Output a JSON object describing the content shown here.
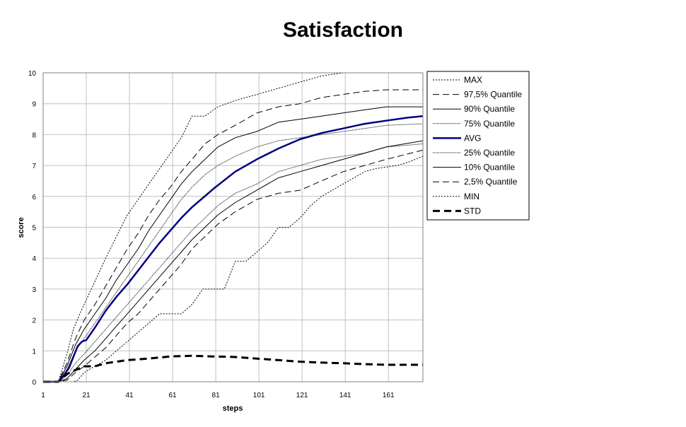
{
  "chart_data": {
    "type": "line",
    "title": "Satisfaction",
    "xlabel": "steps",
    "ylabel": "score",
    "xlim": [
      1,
      177
    ],
    "ylim": [
      0,
      10
    ],
    "xticks": [
      1,
      21,
      41,
      61,
      81,
      101,
      121,
      141,
      161
    ],
    "yticks": [
      0,
      1,
      2,
      3,
      4,
      5,
      6,
      7,
      8,
      9,
      10
    ],
    "grid": true,
    "legend_position": "right",
    "series": [
      {
        "name": "MAX",
        "style": "dotted",
        "color": "#000000",
        "x": [
          1,
          8,
          12,
          15,
          18,
          22,
          26,
          30,
          35,
          40,
          45,
          50,
          55,
          60,
          65,
          70,
          76,
          82,
          90,
          100,
          110,
          120,
          130,
          140,
          145
        ],
        "y": [
          0,
          0,
          0.9,
          1.7,
          2.2,
          2.8,
          3.4,
          4.0,
          4.7,
          5.4,
          5.9,
          6.4,
          6.9,
          7.4,
          7.9,
          8.6,
          8.6,
          8.9,
          9.1,
          9.3,
          9.5,
          9.7,
          9.9,
          10.0,
          10.0
        ]
      },
      {
        "name": "97,5% Quantile",
        "style": "longdash",
        "color": "#000000",
        "x": [
          1,
          8,
          12,
          16,
          20,
          25,
          30,
          35,
          40,
          45,
          50,
          55,
          60,
          65,
          70,
          76,
          82,
          90,
          100,
          110,
          120,
          130,
          140,
          150,
          160,
          177
        ],
        "y": [
          0,
          0,
          0.6,
          1.4,
          2.0,
          2.5,
          3.1,
          3.7,
          4.3,
          4.8,
          5.4,
          5.9,
          6.3,
          6.8,
          7.2,
          7.7,
          8.0,
          8.3,
          8.7,
          8.9,
          9.0,
          9.2,
          9.3,
          9.4,
          9.45,
          9.45
        ]
      },
      {
        "name": "90% Quantile",
        "style": "solid",
        "color": "#000000",
        "x": [
          1,
          8,
          12,
          16,
          20,
          25,
          30,
          35,
          40,
          45,
          50,
          55,
          60,
          65,
          70,
          76,
          82,
          90,
          100,
          110,
          120,
          130,
          140,
          150,
          160,
          177
        ],
        "y": [
          0,
          0,
          0.5,
          1.2,
          1.7,
          2.2,
          2.7,
          3.3,
          3.8,
          4.3,
          4.9,
          5.4,
          5.9,
          6.4,
          6.8,
          7.2,
          7.6,
          7.9,
          8.1,
          8.4,
          8.5,
          8.6,
          8.7,
          8.8,
          8.9,
          8.9
        ]
      },
      {
        "name": "75% Quantile",
        "style": "dense",
        "color": "#000000",
        "x": [
          1,
          8,
          12,
          16,
          20,
          25,
          30,
          35,
          40,
          45,
          50,
          55,
          60,
          65,
          70,
          76,
          82,
          90,
          100,
          110,
          120,
          130,
          140,
          150,
          160,
          177
        ],
        "y": [
          0,
          0,
          0.4,
          1.0,
          1.4,
          1.9,
          2.4,
          2.9,
          3.4,
          3.9,
          4.4,
          4.9,
          5.4,
          5.9,
          6.3,
          6.7,
          7.0,
          7.3,
          7.6,
          7.8,
          7.9,
          8.0,
          8.1,
          8.2,
          8.3,
          8.35
        ]
      },
      {
        "name": "AVG",
        "style": "bold",
        "color": "#000080",
        "x": [
          1,
          8,
          10,
          13,
          15,
          17,
          19,
          21,
          25,
          30,
          35,
          40,
          45,
          50,
          55,
          60,
          65,
          70,
          75,
          80,
          90,
          100,
          110,
          120,
          130,
          140,
          150,
          160,
          170,
          177
        ],
        "y": [
          0,
          0,
          0.15,
          0.45,
          0.8,
          1.15,
          1.3,
          1.35,
          1.75,
          2.3,
          2.75,
          3.15,
          3.6,
          4.05,
          4.5,
          4.9,
          5.3,
          5.65,
          5.95,
          6.25,
          6.8,
          7.2,
          7.55,
          7.85,
          8.05,
          8.2,
          8.35,
          8.45,
          8.55,
          8.6
        ]
      },
      {
        "name": "25% Quantile",
        "style": "dense",
        "color": "#000000",
        "x": [
          1,
          8,
          12,
          16,
          20,
          25,
          30,
          35,
          40,
          45,
          50,
          55,
          60,
          65,
          70,
          76,
          82,
          90,
          100,
          110,
          120,
          130,
          140,
          150,
          160,
          177
        ],
        "y": [
          0,
          0,
          0.2,
          0.6,
          0.9,
          1.3,
          1.7,
          2.1,
          2.5,
          2.9,
          3.3,
          3.7,
          4.1,
          4.5,
          4.9,
          5.3,
          5.7,
          6.1,
          6.4,
          6.8,
          7.0,
          7.2,
          7.3,
          7.4,
          7.6,
          7.7
        ]
      },
      {
        "name": "10% Quantile",
        "style": "solid",
        "color": "#000000",
        "x": [
          1,
          8,
          12,
          16,
          20,
          25,
          30,
          35,
          40,
          45,
          50,
          55,
          60,
          65,
          70,
          76,
          82,
          90,
          100,
          110,
          120,
          130,
          140,
          150,
          160,
          177
        ],
        "y": [
          0,
          0,
          0.1,
          0.4,
          0.7,
          1.0,
          1.4,
          1.8,
          2.2,
          2.6,
          3.0,
          3.4,
          3.8,
          4.2,
          4.6,
          5.0,
          5.4,
          5.8,
          6.2,
          6.6,
          6.8,
          7.0,
          7.2,
          7.4,
          7.6,
          7.8
        ]
      },
      {
        "name": "2,5% Quantile",
        "style": "longdash",
        "color": "#000000",
        "x": [
          1,
          8,
          12,
          16,
          20,
          25,
          30,
          35,
          40,
          45,
          50,
          55,
          60,
          65,
          70,
          76,
          82,
          90,
          100,
          110,
          120,
          130,
          140,
          150,
          160,
          177
        ],
        "y": [
          0,
          0,
          0.05,
          0.3,
          0.5,
          0.8,
          1.1,
          1.5,
          1.9,
          2.2,
          2.6,
          3.0,
          3.4,
          3.8,
          4.3,
          4.7,
          5.1,
          5.5,
          5.9,
          6.1,
          6.2,
          6.5,
          6.8,
          7.0,
          7.2,
          7.5
        ]
      },
      {
        "name": "MIN",
        "style": "dotted",
        "color": "#000000",
        "x": [
          1,
          12,
          15,
          17,
          20,
          25,
          30,
          35,
          40,
          45,
          50,
          55,
          60,
          65,
          70,
          75,
          80,
          85,
          90,
          95,
          100,
          105,
          110,
          115,
          120,
          125,
          130,
          135,
          140,
          145,
          150,
          155,
          160,
          165,
          170,
          177
        ],
        "y": [
          0,
          0,
          0,
          0.05,
          0.3,
          0.5,
          0.7,
          1.0,
          1.3,
          1.6,
          1.9,
          2.2,
          2.2,
          2.2,
          2.5,
          3.0,
          3.0,
          3.0,
          3.9,
          3.9,
          4.2,
          4.5,
          5.0,
          5.0,
          5.3,
          5.7,
          6.0,
          6.2,
          6.4,
          6.6,
          6.8,
          6.9,
          6.95,
          7.0,
          7.1,
          7.3
        ]
      },
      {
        "name": "STD",
        "style": "thickdash",
        "color": "#000000",
        "x": [
          1,
          8,
          12,
          15,
          20,
          25,
          30,
          35,
          40,
          50,
          60,
          65,
          70,
          80,
          90,
          100,
          110,
          120,
          130,
          140,
          150,
          160,
          177
        ],
        "y": [
          0,
          0,
          0.25,
          0.35,
          0.5,
          0.5,
          0.6,
          0.65,
          0.7,
          0.75,
          0.82,
          0.83,
          0.84,
          0.82,
          0.8,
          0.75,
          0.7,
          0.65,
          0.62,
          0.6,
          0.57,
          0.55,
          0.55
        ]
      }
    ]
  }
}
